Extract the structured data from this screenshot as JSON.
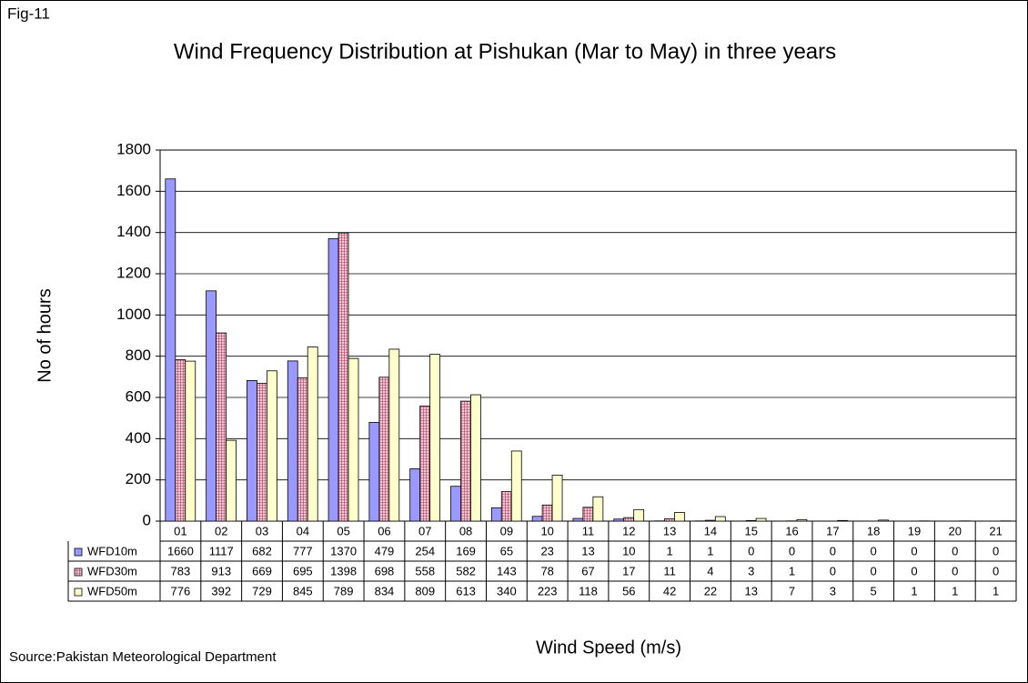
{
  "chart_data": {
    "type": "bar",
    "figure_label": "Fig-11",
    "title": "Wind Frequency Distribution at Pishukan (Mar to May) in three years",
    "y_label": "No of hours",
    "x_label": "Wind Speed (m/s)",
    "source": "Source:Pakistan Meteorological Department",
    "categories": [
      "01",
      "02",
      "03",
      "04",
      "05",
      "06",
      "07",
      "08",
      "09",
      "10",
      "11",
      "12",
      "13",
      "14",
      "15",
      "16",
      "17",
      "18",
      "19",
      "20",
      "21"
    ],
    "series": [
      {
        "name": "WFD10m",
        "color": "#9999ff",
        "values": [
          1660,
          1117,
          682,
          777,
          1370,
          479,
          254,
          169,
          65,
          23,
          13,
          10,
          1,
          1,
          0,
          0,
          0,
          0,
          0,
          0,
          0
        ]
      },
      {
        "name": "WFD30m",
        "color": "#f3b5c6",
        "values": [
          783,
          913,
          669,
          695,
          1398,
          698,
          558,
          582,
          143,
          78,
          67,
          17,
          11,
          4,
          3,
          1,
          0,
          0,
          0,
          0,
          0
        ]
      },
      {
        "name": "WFD50m",
        "color": "#ffffcc",
        "values": [
          776,
          392,
          729,
          845,
          789,
          834,
          809,
          613,
          340,
          223,
          118,
          56,
          42,
          22,
          13,
          7,
          3,
          5,
          1,
          1,
          1
        ]
      }
    ],
    "ylim": [
      0,
      1800
    ],
    "yticks": [
      0,
      200,
      400,
      600,
      800,
      1000,
      1200,
      1400,
      1600,
      1800
    ],
    "grid": true
  }
}
